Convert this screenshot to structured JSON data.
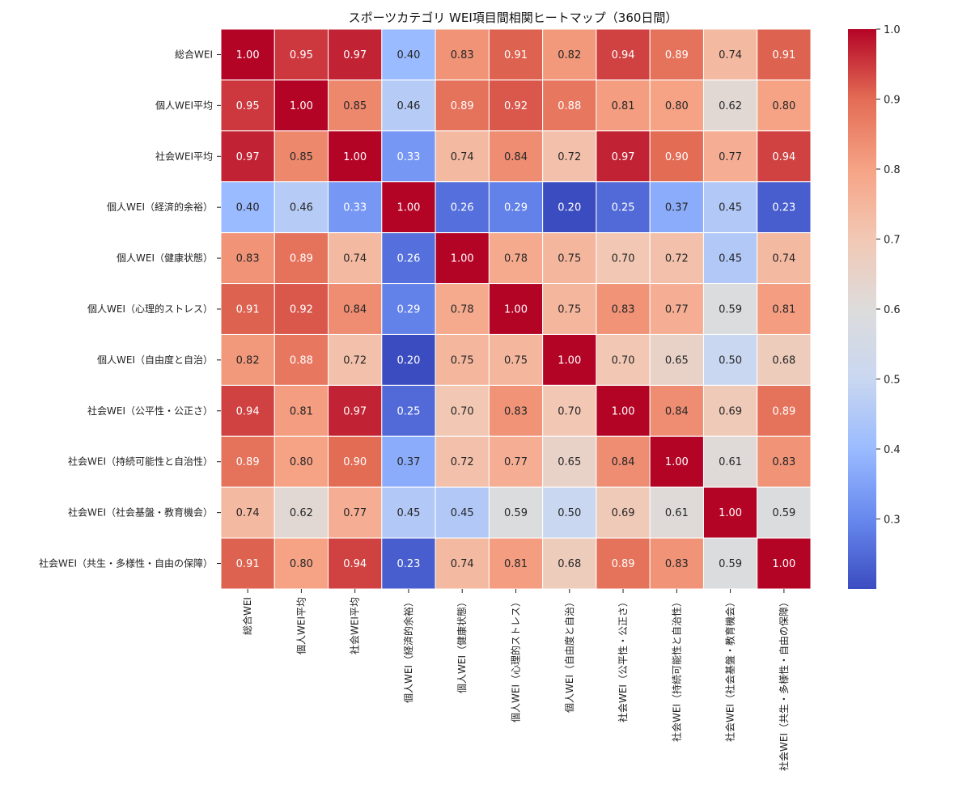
{
  "chart_data": {
    "type": "heatmap",
    "title": "スポーツカテゴリ WEI項目間相関ヒートマップ（360日間）",
    "xlabel": "",
    "ylabel": "",
    "labels": [
      "総合WEI",
      "個人WEI平均",
      "社会WEI平均",
      "個人WEI（経済的余裕）",
      "個人WEI（健康状態）",
      "個人WEI（心理的ストレス）",
      "個人WEI（自由度と自治）",
      "社会WEI（公平性・公正さ）",
      "社会WEI（持続可能性と自治性）",
      "社会WEI（社会基盤・教育機会）",
      "社会WEI（共生・多様性・自由の保障）"
    ],
    "matrix": [
      [
        1.0,
        0.95,
        0.97,
        0.4,
        0.83,
        0.91,
        0.82,
        0.94,
        0.89,
        0.74,
        0.91
      ],
      [
        0.95,
        1.0,
        0.85,
        0.46,
        0.89,
        0.92,
        0.88,
        0.81,
        0.8,
        0.62,
        0.8
      ],
      [
        0.97,
        0.85,
        1.0,
        0.33,
        0.74,
        0.84,
        0.72,
        0.97,
        0.9,
        0.77,
        0.94
      ],
      [
        0.4,
        0.46,
        0.33,
        1.0,
        0.26,
        0.29,
        0.2,
        0.25,
        0.37,
        0.45,
        0.23
      ],
      [
        0.83,
        0.89,
        0.74,
        0.26,
        1.0,
        0.78,
        0.75,
        0.7,
        0.72,
        0.45,
        0.74
      ],
      [
        0.91,
        0.92,
        0.84,
        0.29,
        0.78,
        1.0,
        0.75,
        0.83,
        0.77,
        0.59,
        0.81
      ],
      [
        0.82,
        0.88,
        0.72,
        0.2,
        0.75,
        0.75,
        1.0,
        0.7,
        0.65,
        0.5,
        0.68
      ],
      [
        0.94,
        0.81,
        0.97,
        0.25,
        0.7,
        0.83,
        0.7,
        1.0,
        0.84,
        0.69,
        0.89
      ],
      [
        0.89,
        0.8,
        0.9,
        0.37,
        0.72,
        0.77,
        0.65,
        0.84,
        1.0,
        0.61,
        0.83
      ],
      [
        0.74,
        0.62,
        0.77,
        0.45,
        0.45,
        0.59,
        0.5,
        0.69,
        0.61,
        1.0,
        0.59
      ],
      [
        0.91,
        0.8,
        0.94,
        0.23,
        0.74,
        0.81,
        0.68,
        0.89,
        0.83,
        0.59,
        1.0
      ]
    ],
    "value_format": "0.00",
    "colormap": "coolwarm",
    "colorbar": {
      "range": [
        0.2,
        1.0
      ],
      "ticks": [
        1.0,
        0.9,
        0.8,
        0.7,
        0.6,
        0.5,
        0.4,
        0.3
      ],
      "tick_labels": [
        "1.0",
        "0.9",
        "0.8",
        "0.7",
        "0.6",
        "0.5",
        "0.4",
        "0.3"
      ],
      "placement": "right"
    },
    "colormap_stops": [
      "#3b4cc0",
      "#6788ee",
      "#9abbff",
      "#c9d7f0",
      "#dddcdc",
      "#f2c8b4",
      "#f6a385",
      "#e36c55",
      "#b40426"
    ],
    "grid": false
  }
}
